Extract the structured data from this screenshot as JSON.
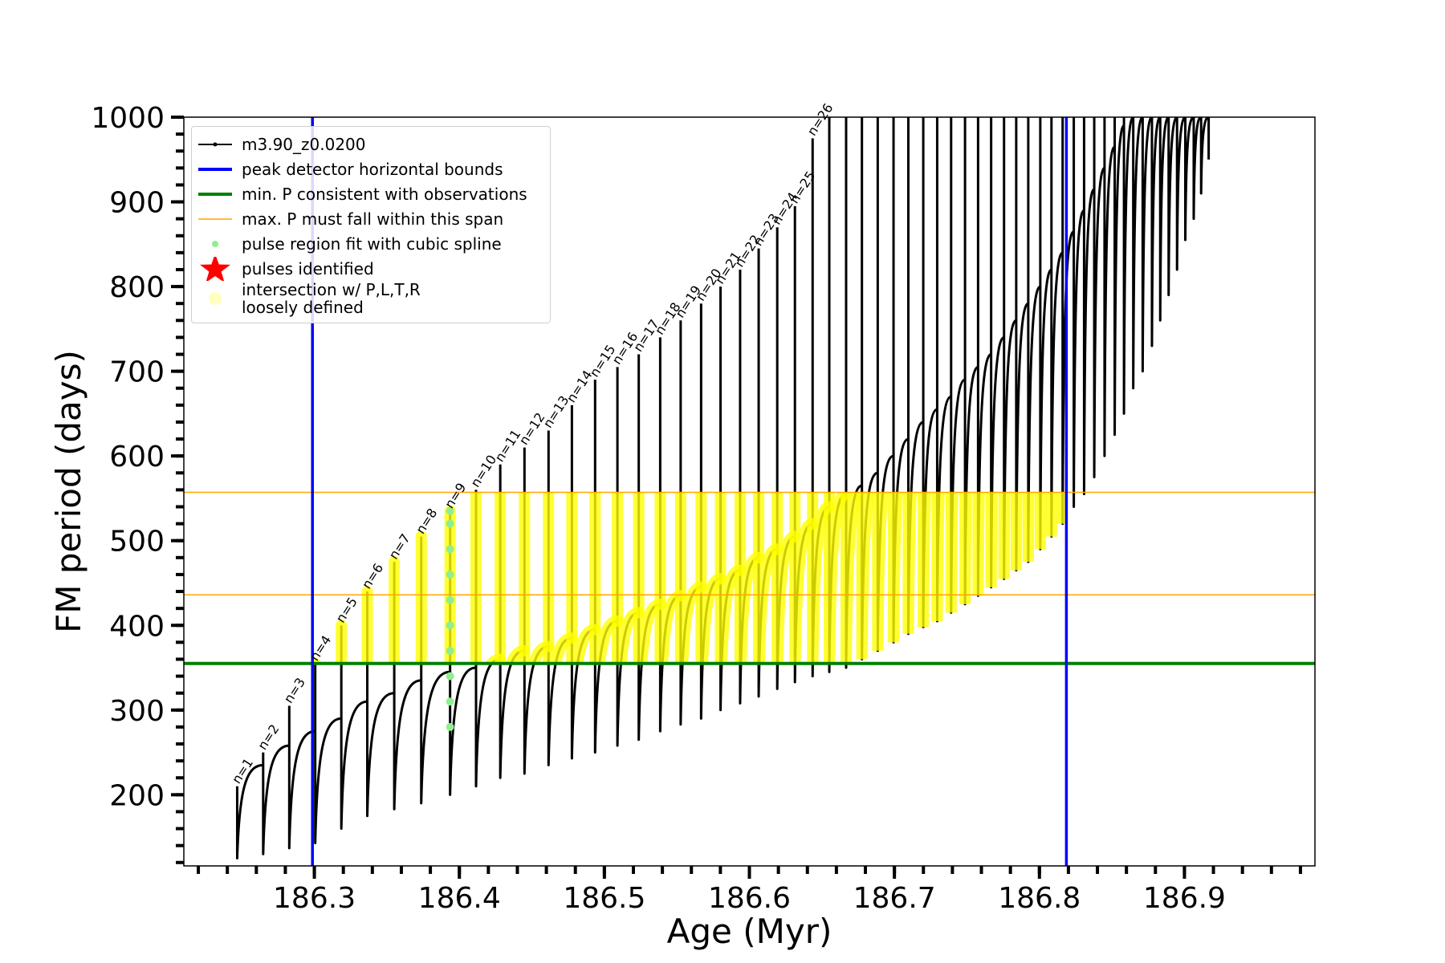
{
  "chart_data": {
    "type": "line",
    "xlabel": "Age (Myr)",
    "ylabel": "FM period (days)",
    "xlim": [
      186.21,
      186.99
    ],
    "ylim": [
      116,
      1000
    ],
    "xticks": [
      186.3,
      186.4,
      186.5,
      186.6,
      186.7,
      186.8,
      186.9
    ],
    "yticks": [
      200,
      300,
      400,
      500,
      600,
      700,
      800,
      900,
      1000
    ],
    "xminorticks": [
      186.22,
      186.24,
      186.26,
      186.28,
      186.3,
      186.32,
      186.34,
      186.36,
      186.38,
      186.4,
      186.42,
      186.44,
      186.46,
      186.48,
      186.5,
      186.52,
      186.54,
      186.56,
      186.58,
      186.6,
      186.62,
      186.64,
      186.66,
      186.68,
      186.7,
      186.72,
      186.74,
      186.76,
      186.78,
      186.8,
      186.82,
      186.84,
      186.86,
      186.88,
      186.9,
      186.92,
      186.94,
      186.96,
      186.98
    ],
    "yminorticks": [
      120,
      140,
      160,
      180,
      200,
      220,
      240,
      260,
      280,
      300,
      320,
      340,
      360,
      380,
      400,
      420,
      440,
      460,
      480,
      500,
      520,
      540,
      560,
      580,
      600,
      620,
      640,
      660,
      680,
      700,
      720,
      740,
      760,
      780,
      800,
      820,
      840,
      860,
      880,
      900,
      920,
      940,
      960,
      980,
      1000
    ],
    "series": [
      {
        "name": "m3.90_z0.0200",
        "color": "#000000",
        "x": [
          186.2468,
          186.2647,
          186.2827,
          186.3006,
          186.3186,
          186.3365,
          186.3551,
          186.3737,
          186.3936,
          186.4115,
          186.4282,
          186.4449,
          186.4615,
          186.4776,
          186.4936,
          186.509,
          186.5237,
          186.5385,
          186.5526,
          186.5667,
          186.5801,
          186.5936,
          186.6064,
          186.6192,
          186.6314,
          186.6436,
          186.6551,
          186.6667,
          186.6776,
          186.6885,
          186.6994,
          186.7096,
          186.7199,
          186.7295,
          186.7391,
          186.7487,
          186.7577,
          186.7667,
          186.7756,
          186.784,
          186.7923,
          186.8006,
          186.8083,
          186.816,
          186.8237,
          186.8308,
          186.8378,
          186.8449,
          186.8519,
          186.8583,
          186.8647,
          186.8712,
          186.8776,
          186.8833,
          186.8891,
          186.8949,
          186.9006,
          186.9064,
          186.9115,
          186.9167
        ],
        "spike": [
          210,
          250,
          305,
          355,
          400,
          440,
          475,
          505,
          535,
          560,
          590,
          610,
          630,
          660,
          690,
          705,
          720,
          740,
          760,
          780,
          800,
          820,
          845,
          870,
          895,
          975,
          1000,
          1000,
          1000,
          1000,
          1000,
          1000,
          1000,
          1000,
          1000,
          1000,
          1000,
          1000,
          1000,
          1000,
          1000,
          1000,
          1000,
          1000,
          1000,
          1000,
          1000,
          1000,
          1000,
          1000,
          1000,
          1000,
          1000,
          1000,
          1000,
          1000,
          1000,
          1000,
          1000,
          1000
        ],
        "trough": [
          125,
          130,
          137,
          143,
          160,
          175,
          183,
          190,
          200,
          210,
          220,
          225,
          235,
          243,
          250,
          258,
          265,
          275,
          283,
          290,
          300,
          308,
          316,
          325,
          333,
          340,
          345,
          350,
          360,
          370,
          380,
          390,
          398,
          405,
          415,
          425,
          435,
          445,
          455,
          465,
          475,
          490,
          505,
          520,
          540,
          555,
          575,
          600,
          625,
          650,
          680,
          700,
          730,
          760,
          790,
          820,
          855,
          880,
          910,
          950
        ],
        "recovered": [
          235,
          258,
          275,
          290,
          310,
          320,
          335,
          345,
          350,
          360,
          370,
          375,
          385,
          395,
          405,
          415,
          425,
          435,
          445,
          455,
          465,
          480,
          490,
          505,
          520,
          540,
          555,
          565,
          580,
          600,
          620,
          640,
          655,
          670,
          690,
          705,
          720,
          740,
          760,
          780,
          800,
          820,
          840,
          865,
          890,
          915,
          940,
          965,
          990,
          1000,
          1000,
          1000,
          1000,
          1000,
          1000,
          1000,
          1000,
          1000,
          1000,
          null
        ]
      }
    ],
    "vlines": [
      {
        "name": "peak detector horizontal bounds",
        "color": "#0000ff",
        "x": [
          186.2987,
          186.8186
        ]
      }
    ],
    "hlines": [
      {
        "name": "min. P consistent with observations",
        "color": "#008000",
        "y": [
          355
        ]
      },
      {
        "name": "max. P must fall within this span",
        "color": "#ffa500",
        "y": [
          436,
          557
        ]
      }
    ],
    "fit_points": {
      "name": "pulse region fit with cubic spline",
      "color": "#90ee90",
      "x": [
        186.3936,
        186.3936,
        186.3936,
        186.3936,
        186.3936,
        186.3936,
        186.3936,
        186.3936,
        186.3936,
        186.3936
      ],
      "y": [
        280,
        310,
        340,
        370,
        400,
        430,
        460,
        490,
        520,
        535
      ]
    },
    "pulses": {
      "name": "pulses identified",
      "color": "#ff0000"
    },
    "intersection": {
      "name": "intersection w/ P,L,T,R\nloosely defined",
      "color": "#ffff00"
    },
    "annotations": [
      "n=1",
      "n=2",
      "n=3",
      "n=4",
      "n=5",
      "n=6",
      "n=7",
      "n=8",
      "n=9",
      "n=10",
      "n=11",
      "n=12",
      "n=13",
      "n=14",
      "n=15",
      "n=16",
      "n=17",
      "n=18",
      "n=19",
      "n=20",
      "n=21",
      "n=22",
      "n=23",
      "n=24",
      "n=25",
      "n=26"
    ],
    "legend": "upper left"
  }
}
